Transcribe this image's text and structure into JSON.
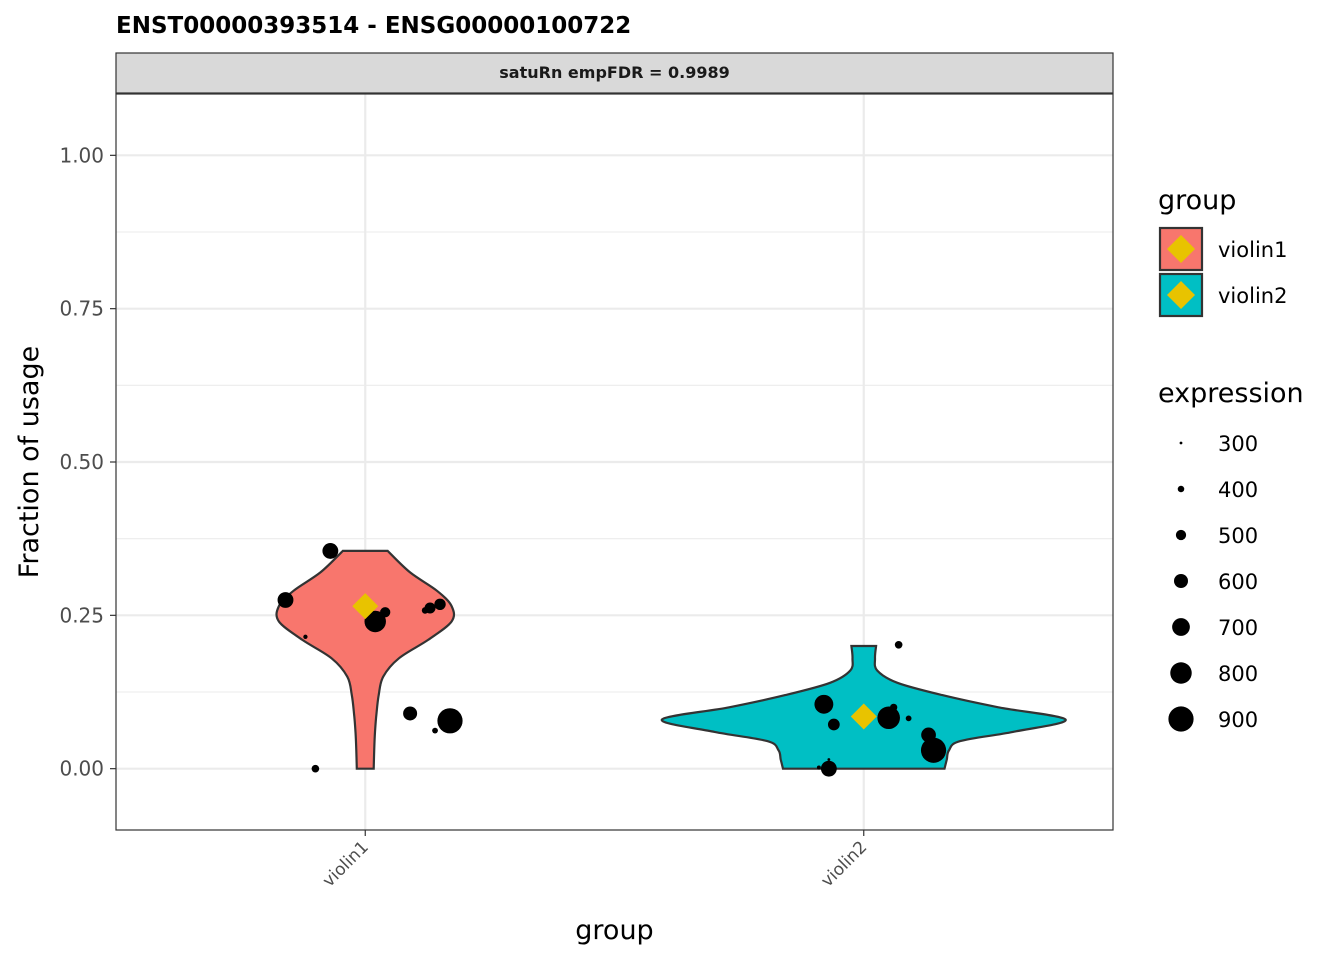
{
  "chart_data": {
    "type": "violin",
    "title": "ENST00000393514  -  ENSG00000100722",
    "facet_label": "satuRn empFDR = 0.9989",
    "xlabel": "group",
    "ylabel": "Fraction of usage",
    "categories": [
      "violin1",
      "violin2"
    ],
    "ylim": [
      -0.1,
      1.1
    ],
    "yticks": [
      0.0,
      0.25,
      0.5,
      0.75,
      1.0
    ],
    "ytick_labels": [
      "0.00",
      "0.25",
      "0.50",
      "0.75",
      "1.00"
    ],
    "grid": true,
    "legend_placement": "right",
    "legends": {
      "group": {
        "title": "group",
        "entries": [
          {
            "label": "violin1",
            "fill": "#F8766D"
          },
          {
            "label": "violin2",
            "fill": "#00BFC4"
          }
        ],
        "mean_marker_color": "#E8C300"
      },
      "expression": {
        "title": "expression",
        "entries": [
          300,
          400,
          500,
          600,
          700,
          800,
          900
        ]
      }
    },
    "violins": [
      {
        "group": "violin1",
        "fill": "#F8766D",
        "mean": 0.265,
        "profile": [
          [
            0.0,
            0.075
          ],
          [
            0.03,
            0.08
          ],
          [
            0.06,
            0.087
          ],
          [
            0.09,
            0.1
          ],
          [
            0.12,
            0.12
          ],
          [
            0.15,
            0.16
          ],
          [
            0.18,
            0.3
          ],
          [
            0.21,
            0.56
          ],
          [
            0.24,
            0.77
          ],
          [
            0.265,
            0.77
          ],
          [
            0.29,
            0.64
          ],
          [
            0.32,
            0.4
          ],
          [
            0.355,
            0.2
          ]
        ],
        "points": [
          {
            "x": 0.93,
            "y": 0.355,
            "expr": 650
          },
          {
            "x": 0.84,
            "y": 0.275,
            "expr": 650
          },
          {
            "x": 1.0,
            "y": 0.267,
            "expr": 530
          },
          {
            "x": 1.04,
            "y": 0.255,
            "expr": 500
          },
          {
            "x": 1.13,
            "y": 0.262,
            "expr": 520
          },
          {
            "x": 1.15,
            "y": 0.268,
            "expr": 530
          },
          {
            "x": 1.12,
            "y": 0.258,
            "expr": 400
          },
          {
            "x": 1.02,
            "y": 0.24,
            "expr": 800
          },
          {
            "x": 0.88,
            "y": 0.215,
            "expr": 340
          },
          {
            "x": 1.09,
            "y": 0.09,
            "expr": 600
          },
          {
            "x": 1.17,
            "y": 0.078,
            "expr": 900
          },
          {
            "x": 1.14,
            "y": 0.062,
            "expr": 380
          },
          {
            "x": 0.9,
            "y": 0.0,
            "expr": 430
          }
        ]
      },
      {
        "group": "violin2",
        "fill": "#00BFC4",
        "mean": 0.085,
        "profile": [
          [
            0.0,
            0.72
          ],
          [
            0.015,
            0.74
          ],
          [
            0.03,
            0.76
          ],
          [
            0.045,
            0.86
          ],
          [
            0.06,
            1.33
          ],
          [
            0.08,
            1.8
          ],
          [
            0.1,
            1.2
          ],
          [
            0.12,
            0.7
          ],
          [
            0.14,
            0.3
          ],
          [
            0.16,
            0.12
          ],
          [
            0.18,
            0.1
          ],
          [
            0.2,
            0.11
          ]
        ],
        "points": [
          {
            "x": 2.07,
            "y": 0.202,
            "expr": 430
          },
          {
            "x": 1.92,
            "y": 0.105,
            "expr": 730
          },
          {
            "x": 2.06,
            "y": 0.1,
            "expr": 420
          },
          {
            "x": 1.94,
            "y": 0.072,
            "expr": 540
          },
          {
            "x": 2.05,
            "y": 0.083,
            "expr": 830
          },
          {
            "x": 2.09,
            "y": 0.082,
            "expr": 380
          },
          {
            "x": 2.13,
            "y": 0.055,
            "expr": 620
          },
          {
            "x": 2.14,
            "y": 0.03,
            "expr": 900
          },
          {
            "x": 1.93,
            "y": 0.015,
            "expr": 300
          },
          {
            "x": 1.93,
            "y": 0.0,
            "expr": 650
          },
          {
            "x": 1.91,
            "y": 0.002,
            "expr": 330
          }
        ]
      }
    ]
  }
}
